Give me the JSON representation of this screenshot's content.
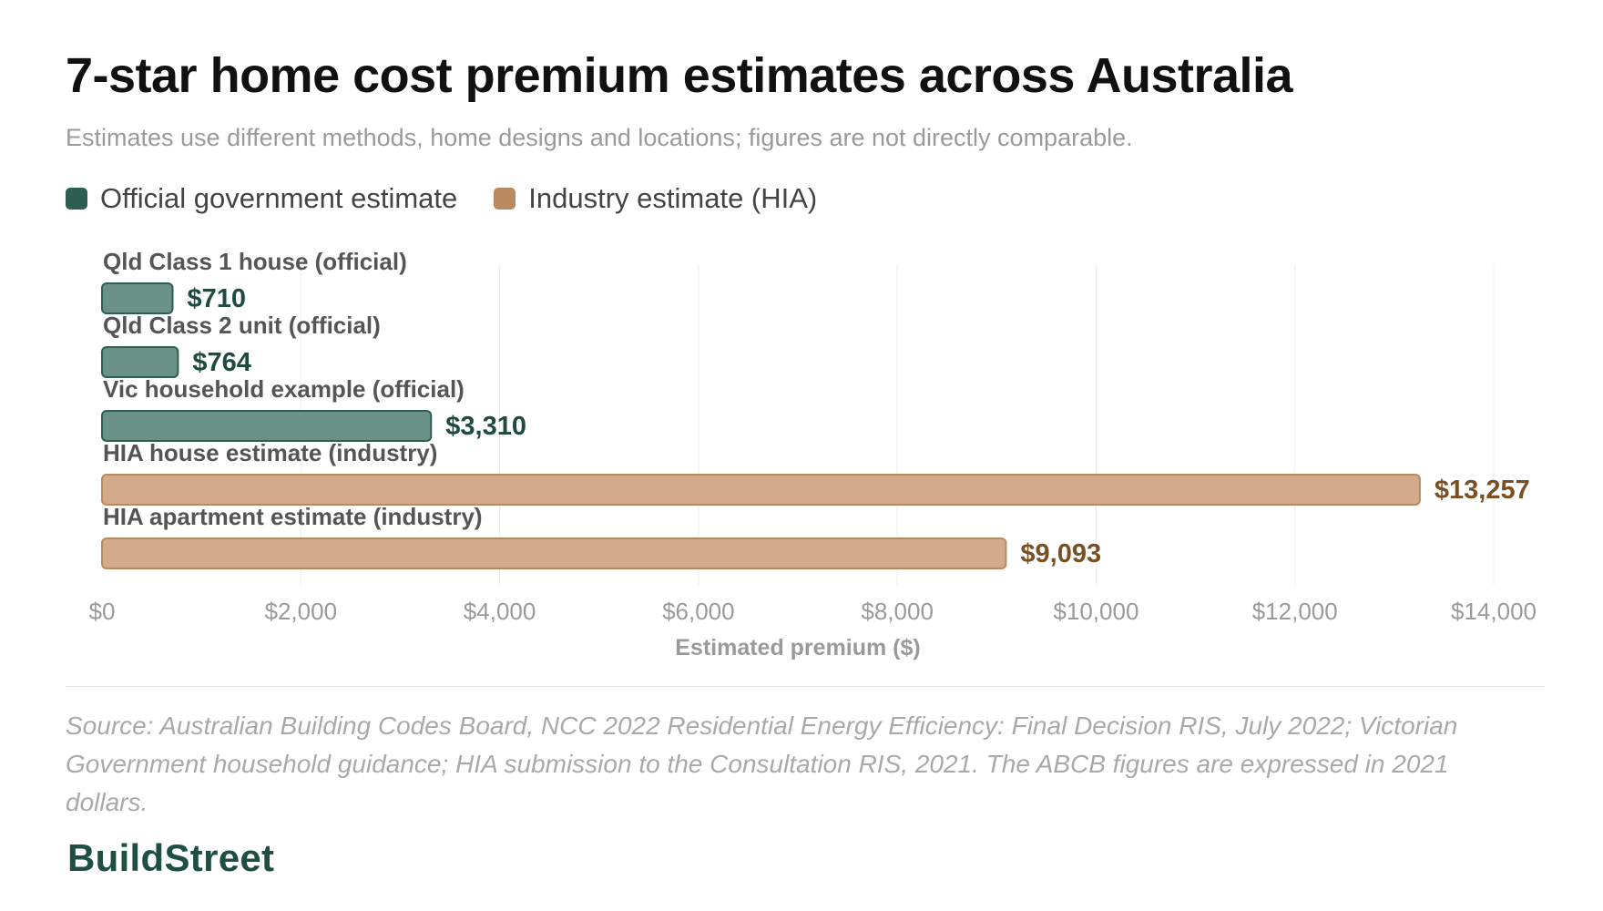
{
  "header": {
    "title": "7-star home cost premium estimates across Australia",
    "subtitle": "Estimates use different methods, home designs and locations; figures are not directly comparable."
  },
  "legend": [
    {
      "label": "Official government estimate",
      "color": "#2e5e52"
    },
    {
      "label": "Industry estimate (HIA)",
      "color": "#b98a60"
    }
  ],
  "chart_data": {
    "type": "bar",
    "orientation": "horizontal",
    "categories": [
      "Qld Class 1 house (official)",
      "Qld Class 2 unit (official)",
      "Vic household example (official)",
      "HIA house estimate (industry)",
      "HIA apartment estimate (industry)"
    ],
    "values": [
      710,
      764,
      3310,
      13257,
      9093
    ],
    "value_labels": [
      "$710",
      "$764",
      "$3,310",
      "$13,257",
      "$9,093"
    ],
    "groups": [
      "official",
      "official",
      "official",
      "industry",
      "industry"
    ],
    "xlabel": "Estimated premium ($)",
    "xlim": [
      0,
      14000
    ],
    "xticks": [
      0,
      2000,
      4000,
      6000,
      8000,
      10000,
      12000,
      14000
    ],
    "xtick_labels": [
      "$0",
      "$2,000",
      "$4,000",
      "$6,000",
      "$8,000",
      "$10,000",
      "$12,000",
      "$14,000"
    ],
    "grid": true,
    "legend_position": "top-left"
  },
  "colors": {
    "official_fill": "#6b9187",
    "official_stroke": "#2e5e52",
    "official_text": "#1e4a3f",
    "industry_fill": "#d3aa8a",
    "industry_stroke": "#b98a60",
    "industry_text": "#7a4f22",
    "grid": "#ececec",
    "axis_text": "#9a9a9a",
    "category_text": "#555555"
  },
  "footer": {
    "source": "Source: Australian Building Codes Board, NCC 2022 Residential Energy Efficiency: Final Decision RIS, July 2022; Victorian Government household guidance; HIA submission to the Consultation RIS, 2021. The ABCB figures are expressed in 2021 dollars.",
    "brand": "BuildStreet"
  }
}
